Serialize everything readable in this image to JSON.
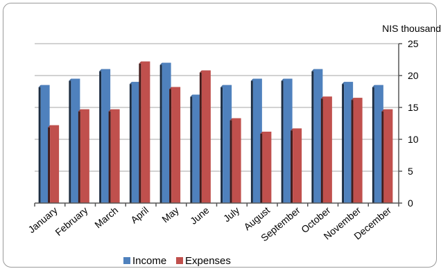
{
  "chart_data": {
    "type": "bar",
    "unit_label": "NIS thousand",
    "categories": [
      "January",
      "February",
      "March",
      "April",
      "May",
      "June",
      "July",
      "August",
      "September",
      "October",
      "November",
      "December"
    ],
    "series": [
      {
        "name": "Income",
        "color": "#4f81bd",
        "values": [
          18.5,
          19.5,
          21,
          19,
          22,
          17,
          18.5,
          19.5,
          19.5,
          21,
          19,
          18.5
        ]
      },
      {
        "name": "Expenses",
        "color": "#c0504d",
        "values": [
          12.2,
          14.7,
          14.7,
          22.2,
          18.2,
          20.8,
          13.3,
          11.2,
          11.7,
          16.7,
          16.5,
          14.7
        ]
      }
    ],
    "ylim": [
      0,
      25
    ],
    "yticks": [
      0,
      5,
      10,
      15,
      20,
      25
    ],
    "y_axis_side": "right",
    "grid": true,
    "legend_position": "bottom"
  }
}
